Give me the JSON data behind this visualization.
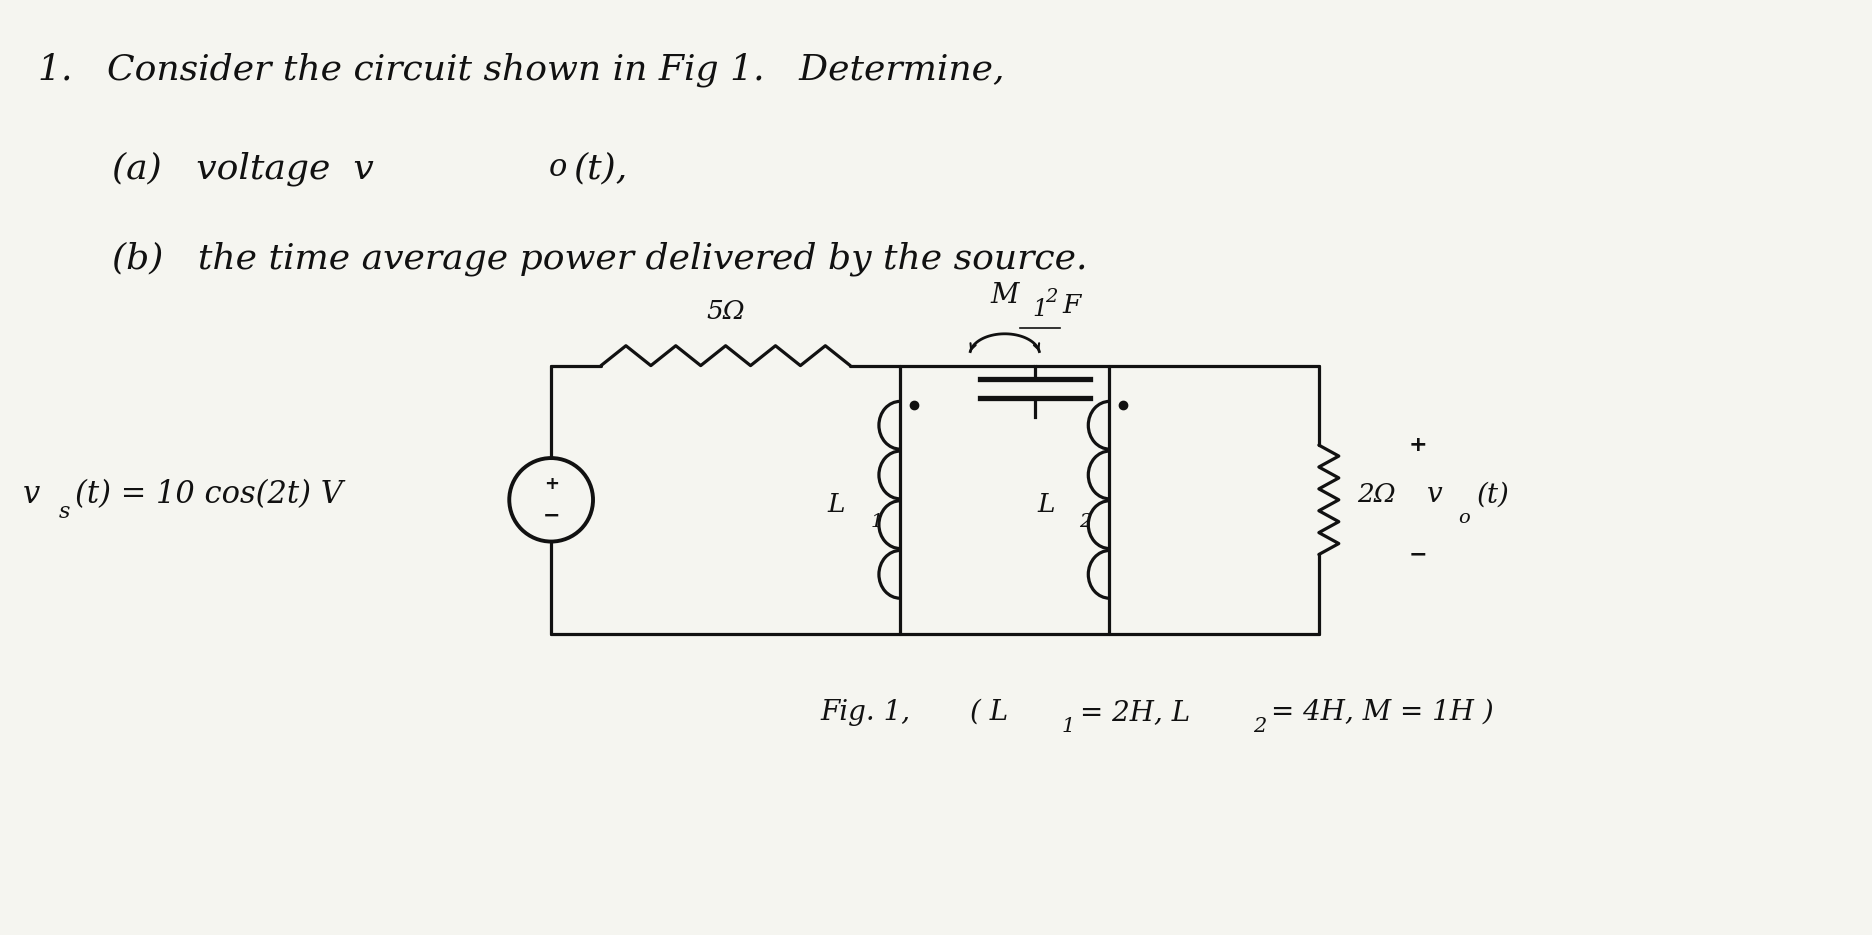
{
  "bg_color": "#f5f5f0",
  "text_color": "#111111",
  "line1": "1.   Consider the circuit shown in Fig 1.   Determine,",
  "line2a": "(a)   voltage  v",
  "line2b": "o",
  "line2c": "(t),",
  "line3a": "(b)   the time average power delivered by the source.",
  "source_label_a": "v",
  "source_label_b": "s",
  "source_label_c": "(t) = 10 cos(2t) V",
  "resistor5_label": "5Ω",
  "resistor2_label": "2Ω",
  "cap_label_a": "1",
  "cap_label_b": "2",
  "cap_label_c": "F",
  "L1_label": "L",
  "L1_sub": "1",
  "L2_label": "L",
  "L2_sub": "2",
  "M_label": "M",
  "Vo_label_a": "v",
  "Vo_label_b": "o",
  "Vo_label_c": "(t)",
  "fig_label": "Fig. 1,",
  "fig_params": "( L",
  "fig_params2": "1",
  "fig_params3": "= 2H, L",
  "fig_params4": "2",
  "fig_params5": "= 4H, M = 1H )",
  "font_size_main": 26,
  "font_size_sub": 22,
  "font_size_circuit": 19,
  "lw": 2.3
}
